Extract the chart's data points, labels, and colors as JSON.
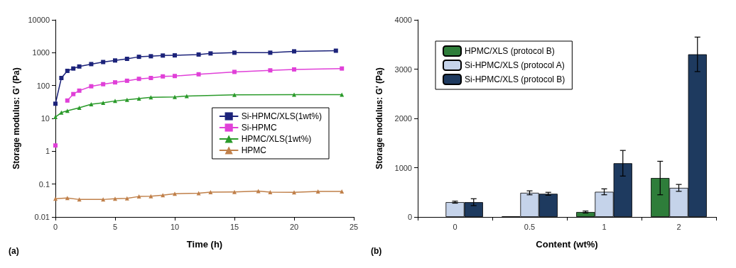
{
  "chart_data": [
    {
      "type": "line",
      "xlabel": "Time (h)",
      "ylabel": "Storage modulus: G' (Pa)",
      "annotations": [
        "(a)"
      ],
      "log": "y",
      "xlim": [
        0,
        25
      ],
      "xticks": [
        0,
        5,
        10,
        15,
        20,
        25
      ],
      "ylim": [
        0.01,
        10000
      ],
      "yticks": [
        0.01,
        0.1,
        1,
        10,
        100,
        1000,
        10000
      ],
      "grid": false,
      "legend": "right",
      "line_style": "solid",
      "series": [
        {
          "name": "Si-HPMC/XLS(1wt%)",
          "color": "#1c237a",
          "marker": "square",
          "x": [
            0,
            0.5,
            1,
            1.5,
            2,
            3,
            4,
            5,
            6,
            7,
            8,
            9,
            10,
            12,
            13,
            15,
            18,
            20,
            23.5
          ],
          "values": [
            28,
            170,
            280,
            330,
            380,
            450,
            520,
            580,
            650,
            750,
            780,
            820,
            830,
            880,
            950,
            1000,
            1000,
            1100,
            1150
          ]
        },
        {
          "name": "Si-HPMC",
          "color": "#e040d8",
          "marker": "square",
          "x": [
            0,
            0.5,
            1,
            1.5,
            2,
            3,
            4,
            5,
            6,
            7,
            8,
            9,
            10,
            12,
            15,
            18,
            20,
            24
          ],
          "values": [
            1.5,
            null,
            35,
            55,
            70,
            95,
            110,
            125,
            140,
            160,
            170,
            190,
            195,
            220,
            260,
            290,
            310,
            330
          ]
        },
        {
          "name": "HPMC/XLS(1wt%)",
          "color": "#2a9a2a",
          "marker": "triangle",
          "x": [
            0,
            0.5,
            1,
            2,
            3,
            4,
            5,
            6,
            7,
            8,
            10,
            11,
            15,
            20,
            24
          ],
          "values": [
            11,
            15,
            17,
            21,
            27,
            30,
            34,
            37,
            40,
            44,
            45,
            48,
            52,
            53,
            53
          ]
        },
        {
          "name": "HPMC",
          "color": "#c0804a",
          "marker": "triangle",
          "x": [
            0,
            1,
            2,
            4,
            5,
            6,
            7,
            8,
            9,
            10,
            12,
            13,
            15,
            17,
            18,
            20,
            22,
            24
          ],
          "values": [
            0.036,
            0.038,
            0.034,
            0.034,
            0.036,
            0.037,
            0.042,
            0.043,
            0.046,
            0.051,
            0.053,
            0.057,
            0.058,
            0.061,
            0.057,
            0.056,
            0.06,
            0.06
          ]
        }
      ]
    },
    {
      "type": "bar",
      "xlabel": "Content (wt%)",
      "ylabel": "Storage modulus: G' (Pa)",
      "annotations": [
        "(b)"
      ],
      "categories": [
        "0",
        "0.5",
        "1",
        "2"
      ],
      "ylim": [
        0,
        4000
      ],
      "yticks": [
        0,
        1000,
        2000,
        3000,
        4000
      ],
      "grid": false,
      "legend": "top left",
      "series": [
        {
          "name": "HPMC/XLS (protocol B)",
          "color": "#2e7d3a",
          "values": [
            null,
            10,
            100,
            790
          ],
          "errors": [
            null,
            null,
            20,
            340
          ]
        },
        {
          "name": "Si-HPMC/XLS (protocol A)",
          "color": "#c5d3ea",
          "values": [
            300,
            490,
            510,
            590
          ],
          "errors": [
            20,
            40,
            60,
            70
          ]
        },
        {
          "name": "Si-HPMC/XLS (protocol B)",
          "color": "#1e3a5f",
          "values": [
            300,
            470,
            1090,
            3300
          ],
          "errors": [
            70,
            30,
            260,
            350
          ]
        }
      ]
    }
  ]
}
